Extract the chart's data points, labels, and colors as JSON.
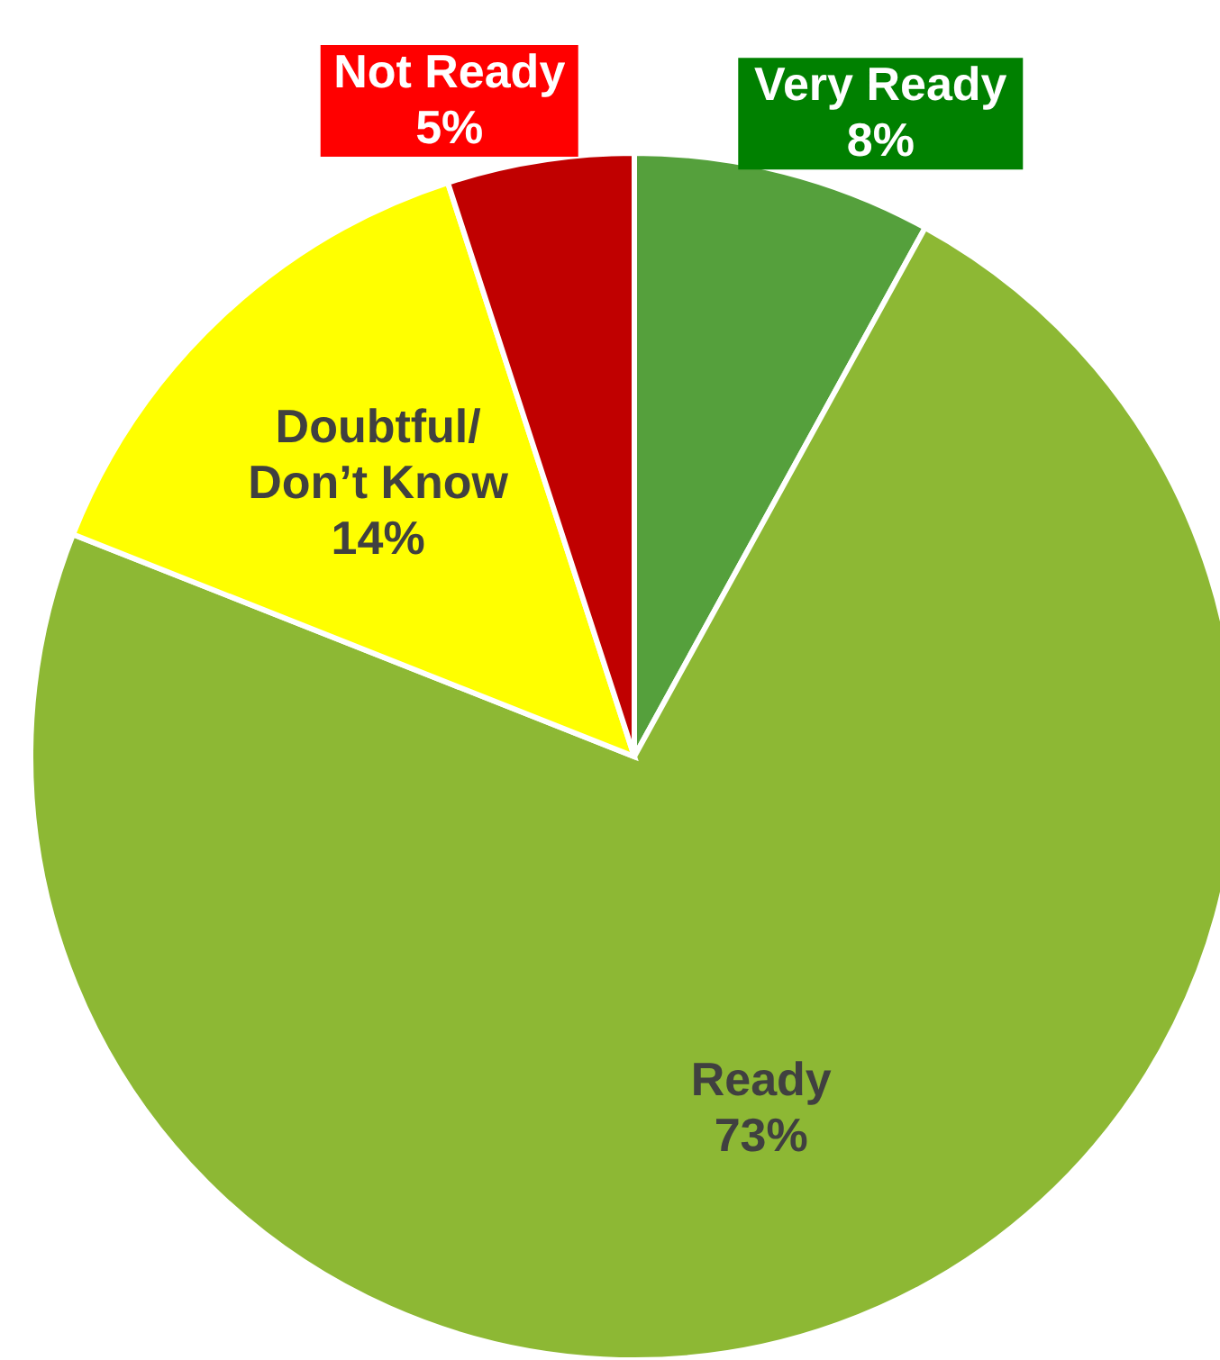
{
  "chart_data": {
    "type": "pie",
    "categories": [
      "Very Ready",
      "Ready",
      "Doubtful/ Don’t Know",
      "Not Ready"
    ],
    "values": [
      8,
      73,
      14,
      5
    ],
    "value_labels": [
      "8%",
      "73%",
      "14%",
      "5%"
    ],
    "colors": [
      "#55a03c",
      "#8db834",
      "#ffff00",
      "#c00000"
    ]
  }
}
